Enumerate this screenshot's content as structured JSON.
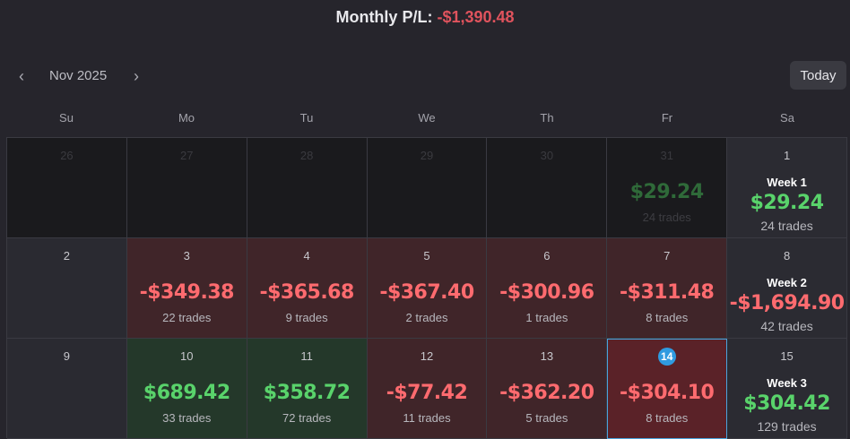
{
  "header": {
    "label": "Monthly P/L:",
    "value": "-$1,390.48"
  },
  "nav": {
    "prev_icon": "chevron-left-icon",
    "next_icon": "chevron-right-icon",
    "prev_glyph": "‹",
    "next_glyph": "›",
    "month": "Nov 2025",
    "today_label": "Today"
  },
  "weekdays": [
    "Su",
    "Mo",
    "Tu",
    "We",
    "Th",
    "Fr",
    "Sa"
  ],
  "colors": {
    "loss": "#ff6b6f",
    "win": "#59d36b",
    "today_badge": "#2f9be0"
  },
  "weeks": [
    {
      "days": [
        {
          "day": "26",
          "outside": true
        },
        {
          "day": "27",
          "outside": true
        },
        {
          "day": "28",
          "outside": true
        },
        {
          "day": "29",
          "outside": true
        },
        {
          "day": "30",
          "outside": true
        },
        {
          "day": "31",
          "outside": true,
          "pl": "$29.24",
          "trades": "24 trades",
          "positive": true
        }
      ],
      "summary": {
        "day": "1",
        "label": "Week 1",
        "pl": "$29.24",
        "trades": "24 trades",
        "positive": true
      }
    },
    {
      "days": [
        {
          "day": "2"
        },
        {
          "day": "3",
          "pl": "-$349.38",
          "trades": "22 trades",
          "positive": false
        },
        {
          "day": "4",
          "pl": "-$365.68",
          "trades": "9 trades",
          "positive": false
        },
        {
          "day": "5",
          "pl": "-$367.40",
          "trades": "2 trades",
          "positive": false
        },
        {
          "day": "6",
          "pl": "-$300.96",
          "trades": "1 trades",
          "positive": false
        },
        {
          "day": "7",
          "pl": "-$311.48",
          "trades": "8 trades",
          "positive": false
        }
      ],
      "summary": {
        "day": "8",
        "label": "Week 2",
        "pl": "-$1,694.90",
        "trades": "42 trades",
        "positive": false
      }
    },
    {
      "days": [
        {
          "day": "9"
        },
        {
          "day": "10",
          "pl": "$689.42",
          "trades": "33 trades",
          "positive": true
        },
        {
          "day": "11",
          "pl": "$358.72",
          "trades": "72 trades",
          "positive": true
        },
        {
          "day": "12",
          "pl": "-$77.42",
          "trades": "11 trades",
          "positive": false
        },
        {
          "day": "13",
          "pl": "-$362.20",
          "trades": "5 trades",
          "positive": false
        },
        {
          "day": "14",
          "pl": "-$304.10",
          "trades": "8 trades",
          "positive": false,
          "today": true
        }
      ],
      "summary": {
        "day": "15",
        "label": "Week 3",
        "pl": "$304.42",
        "trades": "129 trades",
        "positive": true
      }
    }
  ]
}
